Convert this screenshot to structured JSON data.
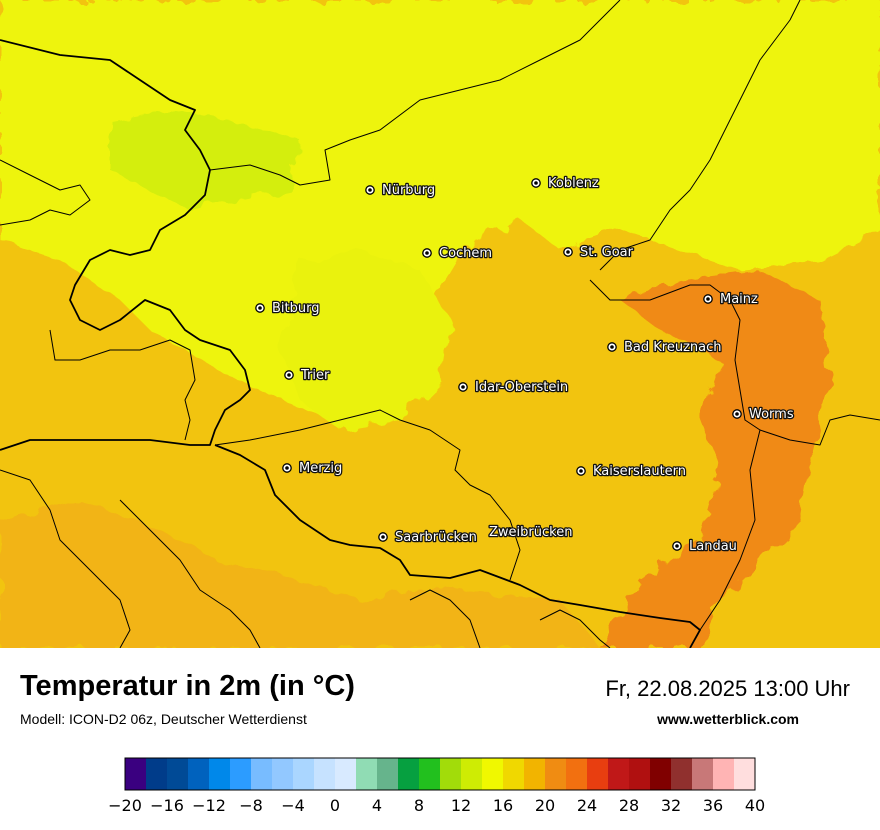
{
  "map": {
    "background_color": "#f2c40f",
    "zones": [
      {
        "name": "north-yellow",
        "color": "#eef40a"
      },
      {
        "name": "northwest-light-green",
        "color": "#d4ee0c"
      },
      {
        "name": "center-yellow",
        "color": "#eaf208"
      },
      {
        "name": "east-orange",
        "color": "#f08a12"
      },
      {
        "name": "south-orange",
        "color": "#f2b414"
      }
    ],
    "cities": [
      {
        "name": "Nürburg"
      },
      {
        "name": "Koblenz"
      },
      {
        "name": "Cochem"
      },
      {
        "name": "St. Goar"
      },
      {
        "name": "Mainz"
      },
      {
        "name": "Bitburg"
      },
      {
        "name": "Bad Kreuznach"
      },
      {
        "name": "Trier"
      },
      {
        "name": "Idar-Oberstein"
      },
      {
        "name": "Worms"
      },
      {
        "name": "Merzig"
      },
      {
        "name": "Kaiserslautern"
      },
      {
        "name": "Saarbrücken"
      },
      {
        "name": "Zweibrücken"
      },
      {
        "name": "Landau"
      }
    ]
  },
  "footer": {
    "title": "Temperatur in 2m (in °C)",
    "subtitle": "Modell: ICON-D2 06z, Deutscher Wetterdienst",
    "datetime": "Fr, 22.08.2025 13:00 Uhr",
    "website": "www.wetterblick.com"
  },
  "legend": {
    "min": -20,
    "max": 40,
    "colors": [
      "#3a0080",
      "#003c8a",
      "#004a96",
      "#0062be",
      "#0088ea",
      "#2c9cff",
      "#78bcff",
      "#92c8ff",
      "#aad6ff",
      "#c6e2ff",
      "#d8eaff",
      "#90dcb4",
      "#66b48c",
      "#06a040",
      "#22c01e",
      "#a2dc0a",
      "#ceec04",
      "#f0f800",
      "#f0d800",
      "#f2b400",
      "#f08c12",
      "#f27010",
      "#e83e10",
      "#c01818",
      "#b01010",
      "#800000",
      "#90302e",
      "#c87878",
      "#ffb4b4",
      "#ffdede"
    ],
    "tick_labels": [
      "−20",
      "−16",
      "−12",
      "−8",
      "−4",
      "0",
      "4",
      "8",
      "12",
      "16",
      "20",
      "24",
      "28",
      "32",
      "36",
      "40"
    ]
  }
}
